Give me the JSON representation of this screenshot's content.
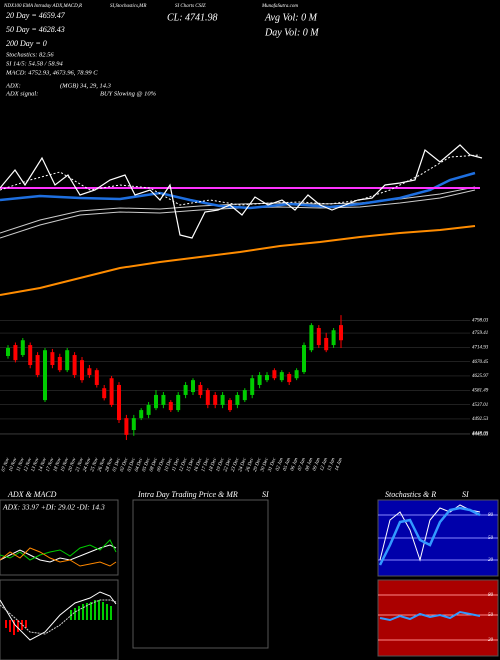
{
  "header": {
    "top": [
      "NDX100 EMA Intraday ADX,MACD,R",
      "SI,Stochastics,MR",
      "SI Charts CSIZ",
      "MunafaSutra.com"
    ],
    "ma20": "20 Day = 4659.47",
    "ma50": "50 Day = 4628.43",
    "ma200": "200 Day = 0",
    "stoch": "Stochastics: 82.56",
    "rsi": "SI 14/5: 54.58 / 58.94",
    "macd": "MACD: 4752.93, 4673.96, 78.99 C",
    "adx": "ADX:",
    "adx_val": "(MGB) 34, 29, 14.3",
    "adx_signal": "ADX signal:",
    "signal": "BUY Slowing @ 10%",
    "close": "CL: 4741.98",
    "avg_vol": "Avg Vol: 0  M",
    "day_vol": "Day Vol: 0  M"
  },
  "chart_data": {
    "type": "candlestick",
    "categories": [
      "07 Nov",
      "10 Nov",
      "11 Nov",
      "12 Nov",
      "13 Nov",
      "14 Nov",
      "17 Nov",
      "18 Nov",
      "19 Nov",
      "20 Nov",
      "21 Nov",
      "24 Nov",
      "25 Nov",
      "26 Nov",
      "28 Nov",
      "01 Dec",
      "02 Dec",
      "03 Dec",
      "04 Dec",
      "05 Dec",
      "08 Dec",
      "09 Dec",
      "10 Dec",
      "11 Dec",
      "12 Dec",
      "15 Dec",
      "16 Dec",
      "17 Dec",
      "18 Dec",
      "19 Dec",
      "22 Dec",
      "23 Dec",
      "24 Dec",
      "26 Dec",
      "29 Dec",
      "30 Dec",
      "31 Dec",
      "02 Jan",
      "05 Jan",
      "06 Jan",
      "07 Jan",
      "08 Jan",
      "09 Jan",
      "12 Jan",
      "13 Jan",
      "14 Jan"
    ],
    "open": [
      4688,
      4722,
      4691,
      4722,
      4691,
      4551,
      4700,
      4685,
      4644,
      4691,
      4675,
      4650,
      4644,
      4588,
      4619,
      4598,
      4495,
      4458,
      4495,
      4505,
      4526,
      4536,
      4545,
      4520,
      4567,
      4576,
      4598,
      4582,
      4567,
      4536,
      4551,
      4536,
      4551,
      4567,
      4598,
      4613,
      4644,
      4613,
      4632,
      4619,
      4638,
      4706,
      4775,
      4744,
      4722,
      4784
    ],
    "high": [
      4722,
      4730,
      4744,
      4730,
      4700,
      4713,
      4710,
      4695,
      4713,
      4700,
      4685,
      4660,
      4650,
      4598,
      4626,
      4607,
      4505,
      4505,
      4526,
      4545,
      4582,
      4576,
      4551,
      4576,
      4607,
      4619,
      4607,
      4588,
      4576,
      4576,
      4557,
      4576,
      4588,
      4629,
      4638,
      4638,
      4650,
      4644,
      4638,
      4650,
      4730,
      4790,
      4784,
      4760,
      4775,
      4815
    ],
    "low": [
      4680,
      4668,
      4685,
      4650,
      4622,
      4545,
      4650,
      4638,
      4638,
      4620,
      4605,
      4620,
      4590,
      4550,
      4530,
      4480,
      4427,
      4440,
      4489,
      4495,
      4520,
      4526,
      4514,
      4514,
      4557,
      4567,
      4557,
      4526,
      4526,
      4526,
      4514,
      4526,
      4545,
      4557,
      4588,
      4607,
      4613,
      4607,
      4598,
      4613,
      4632,
      4700,
      4713,
      4700,
      4713,
      4713
    ],
    "close": [
      4713,
      4675,
      4737,
      4660,
      4629,
      4706,
      4660,
      4644,
      4706,
      4629,
      4613,
      4629,
      4598,
      4557,
      4536,
      4489,
      4443,
      4495,
      4520,
      4536,
      4567,
      4567,
      4520,
      4567,
      4598,
      4613,
      4567,
      4536,
      4536,
      4567,
      4520,
      4567,
      4582,
      4619,
      4629,
      4629,
      4619,
      4638,
      4607,
      4644,
      4722,
      4784,
      4722,
      4706,
      4768,
      4737
    ],
    "ylim": [
      4396,
      4862
    ],
    "yticks": [
      4798.03,
      4759.41,
      4714.93,
      4670.45,
      4625.97,
      4581.49,
      4537.01,
      4492.53,
      4448.05,
      4445.03
    ],
    "up_color": "#00cc00",
    "down_color": "#ff0000",
    "grid": true
  },
  "panels": {
    "p1_title": "ADX  & MACD",
    "p1_label": "ADX: 33.97 +DI: 29.02 -DI: 14.3",
    "p2_title": "Intra Day Trading Price  & MR",
    "p2_title_b": "SI",
    "p3_title": "Stochastics & R",
    "p3_title_b": "SI",
    "stoch_ticks": [
      "80",
      "50",
      "20"
    ],
    "rsi_ticks": [
      "80",
      "50",
      "20"
    ]
  }
}
